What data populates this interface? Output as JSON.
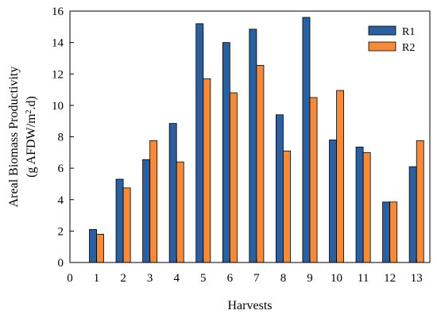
{
  "chart_data": {
    "type": "bar",
    "title": "",
    "xlabel": "Harvests",
    "ylabel_line1": "Areal Biomass Productivity",
    "ylabel_line2_prefix": "(g AFDW/m",
    "ylabel_line2_sup": "2",
    "ylabel_line2_suffix": ".d)",
    "x_ticks": [
      "0",
      "1",
      "2",
      "3",
      "4",
      "5",
      "6",
      "7",
      "8",
      "9",
      "10",
      "11",
      "12",
      "13"
    ],
    "y_ticks": [
      "0",
      "2",
      "4",
      "6",
      "8",
      "10",
      "12",
      "14",
      "16"
    ],
    "xlim": [
      0,
      13.5
    ],
    "ylim": [
      0,
      16
    ],
    "categories": [
      1,
      2,
      3,
      4,
      5,
      6,
      7,
      8,
      9,
      10,
      11,
      12,
      13
    ],
    "series": [
      {
        "name": "R1",
        "color": "#2b5fa0",
        "values": [
          2.1,
          5.3,
          6.55,
          8.85,
          15.2,
          14.0,
          14.85,
          9.4,
          15.6,
          7.8,
          7.35,
          3.85,
          6.1
        ]
      },
      {
        "name": "R2",
        "color": "#f58a3a",
        "values": [
          1.8,
          4.75,
          7.75,
          6.4,
          11.7,
          10.8,
          12.55,
          7.1,
          10.5,
          10.95,
          7.0,
          3.85,
          7.75
        ]
      }
    ],
    "legend_position": "top-right",
    "grid": false
  }
}
